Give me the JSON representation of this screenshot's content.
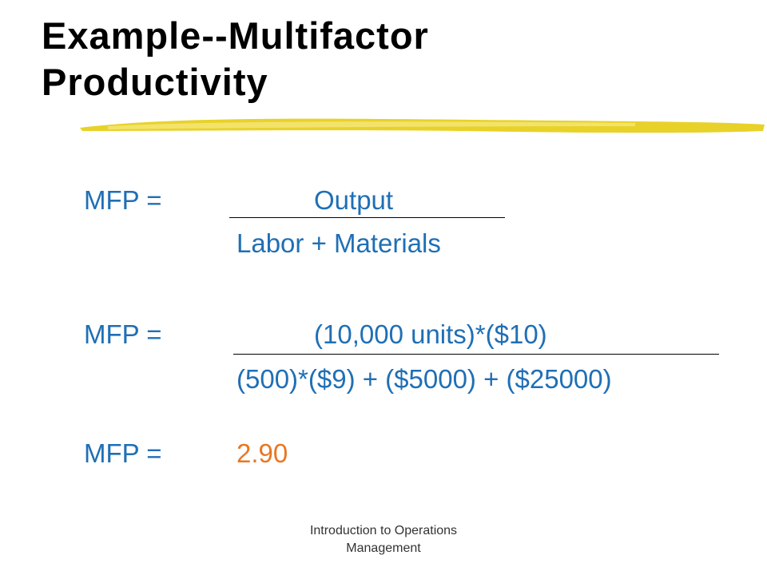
{
  "title": "Example--Multifactor Productivity",
  "equations": [
    {
      "lhs": "MFP =",
      "numerator": "Output",
      "denominator": "Labor + Materials"
    },
    {
      "lhs": "MFP =",
      "numerator": "(10,000 units)*($10)",
      "denominator": "(500)*($9) + ($5000) + ($25000)"
    },
    {
      "lhs": "MFP =",
      "result": "2.90"
    }
  ],
  "footer": "Introduction to Operations Management"
}
